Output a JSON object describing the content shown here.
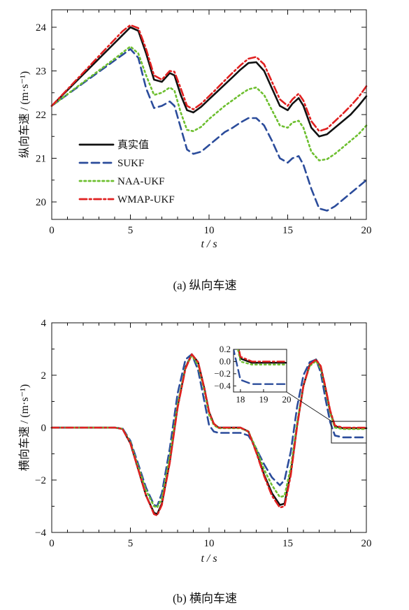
{
  "chart_data": [
    {
      "type": "line",
      "caption": "(a)  纵向车速",
      "xlabel": "t / s",
      "ylabel": "纵向车速 / (m·s⁻¹)",
      "xlim": [
        0,
        20
      ],
      "ylim": [
        19.6,
        24.4
      ],
      "xticks": [
        0,
        5,
        10,
        15,
        20
      ],
      "yticks": [
        20,
        21,
        22,
        23,
        24
      ],
      "legend_position": "lower-left",
      "series": [
        {
          "name": "真实值",
          "color": "#111111",
          "style": "solid",
          "x": [
            0,
            1,
            2,
            3,
            4,
            4.5,
            5,
            5.5,
            6,
            6.5,
            7,
            7.5,
            7.8,
            8.2,
            8.6,
            9,
            9.5,
            10,
            10.5,
            11,
            11.5,
            12,
            12.5,
            13,
            13.5,
            14,
            14.5,
            15,
            15.3,
            15.7,
            16,
            16.5,
            17,
            17.5,
            18,
            18.5,
            19,
            19.5,
            20
          ],
          "y": [
            22.2,
            22.56,
            22.92,
            23.28,
            23.64,
            23.82,
            24.0,
            23.92,
            23.4,
            22.8,
            22.75,
            22.95,
            22.9,
            22.45,
            22.1,
            22.05,
            22.18,
            22.35,
            22.52,
            22.69,
            22.86,
            23.03,
            23.18,
            23.2,
            23.0,
            22.6,
            22.2,
            22.1,
            22.25,
            22.38,
            22.2,
            21.7,
            21.5,
            21.55,
            21.7,
            21.85,
            22.0,
            22.2,
            22.42
          ]
        },
        {
          "name": "SUKF",
          "color": "#2b4c9b",
          "style": "dashed",
          "x": [
            0,
            1,
            2,
            3,
            4,
            4.5,
            5,
            5.5,
            6,
            6.5,
            7,
            7.5,
            7.8,
            8.2,
            8.6,
            9,
            9.5,
            10,
            10.5,
            11,
            11.5,
            12,
            12.5,
            13,
            13.5,
            14,
            14.5,
            15,
            15.3,
            15.7,
            16,
            16.5,
            17,
            17.5,
            18,
            18.5,
            19,
            19.5,
            20
          ],
          "y": [
            22.2,
            22.46,
            22.72,
            22.98,
            23.24,
            23.37,
            23.5,
            23.3,
            22.6,
            22.15,
            22.2,
            22.3,
            22.2,
            21.7,
            21.2,
            21.1,
            21.15,
            21.3,
            21.45,
            21.6,
            21.7,
            21.82,
            21.92,
            21.92,
            21.75,
            21.4,
            21.0,
            20.9,
            21.0,
            21.05,
            20.85,
            20.3,
            19.85,
            19.8,
            19.9,
            20.05,
            20.2,
            20.35,
            20.5
          ]
        },
        {
          "name": "NAA-UKF",
          "color": "#6dbf2f",
          "style": "dotted",
          "x": [
            0,
            1,
            2,
            3,
            4,
            4.5,
            5,
            5.5,
            6,
            6.5,
            7,
            7.5,
            7.8,
            8.2,
            8.6,
            9,
            9.5,
            10,
            10.5,
            11,
            11.5,
            12,
            12.5,
            13,
            13.5,
            14,
            14.5,
            15,
            15.3,
            15.7,
            16,
            16.5,
            17,
            17.5,
            18,
            18.5,
            19,
            19.5,
            20
          ],
          "y": [
            22.2,
            22.47,
            22.74,
            23.01,
            23.28,
            23.42,
            23.56,
            23.4,
            22.9,
            22.45,
            22.5,
            22.62,
            22.55,
            22.05,
            21.65,
            21.62,
            21.72,
            21.9,
            22.05,
            22.2,
            22.33,
            22.46,
            22.58,
            22.62,
            22.45,
            22.1,
            21.75,
            21.7,
            21.82,
            21.86,
            21.7,
            21.15,
            20.95,
            20.98,
            21.1,
            21.25,
            21.4,
            21.55,
            21.75
          ]
        },
        {
          "name": "WMAP-UKF",
          "color": "#e02020",
          "style": "dashdot",
          "x": [
            0,
            1,
            2,
            3,
            4,
            4.5,
            5,
            5.5,
            6,
            6.5,
            7,
            7.5,
            7.8,
            8.2,
            8.6,
            9,
            9.5,
            10,
            10.5,
            11,
            11.5,
            12,
            12.5,
            13,
            13.5,
            14,
            14.5,
            15,
            15.3,
            15.7,
            16,
            16.5,
            17,
            17.5,
            18,
            18.5,
            19,
            19.5,
            20
          ],
          "y": [
            22.2,
            22.58,
            22.96,
            23.34,
            23.72,
            23.91,
            24.05,
            23.98,
            23.5,
            22.9,
            22.8,
            23.0,
            22.98,
            22.6,
            22.2,
            22.12,
            22.25,
            22.42,
            22.6,
            22.78,
            22.96,
            23.13,
            23.28,
            23.32,
            23.15,
            22.75,
            22.35,
            22.2,
            22.35,
            22.48,
            22.32,
            21.85,
            21.62,
            21.68,
            21.85,
            22.02,
            22.2,
            22.4,
            22.65
          ]
        }
      ]
    },
    {
      "type": "line",
      "caption": "(b)  横向车速",
      "xlabel": "t / s",
      "ylabel": "横向车速 / (m·s⁻¹)",
      "xlim": [
        0,
        20
      ],
      "ylim": [
        -4,
        4
      ],
      "xticks": [
        0,
        5,
        10,
        15,
        20
      ],
      "yticks": [
        -4,
        -2,
        0,
        2,
        4
      ],
      "series": [
        {
          "name": "真实值",
          "color": "#111111",
          "style": "solid",
          "x": [
            0,
            2,
            4,
            4.5,
            5,
            5.5,
            6,
            6.5,
            6.7,
            7,
            7.5,
            8,
            8.5,
            8.9,
            9.3,
            9.7,
            10,
            10.3,
            10.6,
            11,
            11.5,
            12,
            12.5,
            13,
            13.5,
            14,
            14.5,
            14.8,
            15.2,
            15.6,
            16,
            16.4,
            16.8,
            17.1,
            17.4,
            17.7,
            18,
            18.5,
            19,
            19.5,
            20
          ],
          "y": [
            0,
            0,
            0,
            -0.05,
            -0.6,
            -1.6,
            -2.6,
            -3.25,
            -3.3,
            -2.9,
            -1.3,
            0.8,
            2.3,
            2.8,
            2.5,
            1.5,
            0.6,
            0.15,
            0,
            0,
            0,
            0,
            -0.15,
            -0.9,
            -1.8,
            -2.5,
            -2.95,
            -2.9,
            -1.7,
            0.1,
            1.6,
            2.4,
            2.6,
            2.3,
            1.5,
            0.6,
            0.05,
            -0.02,
            -0.02,
            -0.02,
            -0.02
          ]
        },
        {
          "name": "SUKF",
          "color": "#2b4c9b",
          "style": "dashed",
          "x": [
            0,
            2,
            4,
            4.5,
            5,
            5.5,
            6,
            6.5,
            6.7,
            7,
            7.5,
            8,
            8.5,
            8.9,
            9.3,
            9.7,
            10,
            10.3,
            10.6,
            11,
            11.5,
            12,
            12.5,
            13,
            13.5,
            14,
            14.5,
            14.8,
            15.2,
            15.6,
            16,
            16.4,
            16.8,
            17.1,
            17.4,
            17.7,
            18,
            18.5,
            19,
            19.5,
            20
          ],
          "y": [
            0,
            0,
            0,
            -0.03,
            -0.5,
            -1.4,
            -2.3,
            -2.95,
            -3.0,
            -2.5,
            -0.8,
            1.3,
            2.6,
            2.8,
            2.2,
            1.0,
            0.1,
            -0.15,
            -0.2,
            -0.2,
            -0.2,
            -0.2,
            -0.3,
            -0.8,
            -1.4,
            -1.9,
            -2.2,
            -2.0,
            -0.9,
            0.8,
            2.0,
            2.5,
            2.6,
            2.1,
            1.1,
            0.2,
            -0.3,
            -0.37,
            -0.37,
            -0.37,
            -0.37
          ]
        },
        {
          "name": "NAA-UKF",
          "color": "#6dbf2f",
          "style": "dotted",
          "x": [
            0,
            2,
            4,
            4.5,
            5,
            5.5,
            6,
            6.5,
            6.7,
            7,
            7.5,
            8,
            8.5,
            8.9,
            9.3,
            9.7,
            10,
            10.3,
            10.6,
            11,
            11.5,
            12,
            12.5,
            13,
            13.5,
            14,
            14.5,
            14.8,
            15.2,
            15.6,
            16,
            16.4,
            16.8,
            17.1,
            17.4,
            17.7,
            18,
            18.5,
            19,
            19.5,
            20
          ],
          "y": [
            0,
            0,
            0,
            -0.04,
            -0.55,
            -1.5,
            -2.4,
            -3.0,
            -3.05,
            -2.7,
            -1.1,
            0.9,
            2.3,
            2.75,
            2.4,
            1.4,
            0.5,
            0.1,
            -0.02,
            -0.02,
            -0.02,
            -0.02,
            -0.15,
            -0.8,
            -1.6,
            -2.2,
            -2.65,
            -2.6,
            -1.5,
            0.2,
            1.6,
            2.35,
            2.55,
            2.25,
            1.45,
            0.55,
            0.0,
            -0.05,
            -0.05,
            -0.05,
            -0.05
          ]
        },
        {
          "name": "WMAP-UKF",
          "color": "#e02020",
          "style": "dashdot",
          "x": [
            0,
            2,
            4,
            4.5,
            5,
            5.5,
            6,
            6.5,
            6.7,
            7,
            7.5,
            8,
            8.5,
            8.9,
            9.3,
            9.7,
            10,
            10.3,
            10.6,
            11,
            11.5,
            12,
            12.5,
            13,
            13.5,
            14,
            14.5,
            14.8,
            15.2,
            15.6,
            16,
            16.4,
            16.8,
            17.1,
            17.4,
            17.7,
            18,
            18.5,
            19,
            19.5,
            20
          ],
          "y": [
            0,
            0,
            0,
            -0.05,
            -0.6,
            -1.6,
            -2.6,
            -3.3,
            -3.35,
            -2.95,
            -1.35,
            0.75,
            2.25,
            2.8,
            2.5,
            1.5,
            0.6,
            0.15,
            0,
            0,
            0,
            0,
            -0.15,
            -0.95,
            -1.85,
            -2.6,
            -3.05,
            -3.0,
            -1.8,
            0.05,
            1.6,
            2.4,
            2.6,
            2.35,
            1.55,
            0.65,
            0.08,
            0,
            0,
            0,
            0
          ]
        }
      ],
      "inset": {
        "xlim": [
          17.7,
          20
        ],
        "ylim": [
          -0.5,
          0.2
        ],
        "xticks": [
          18,
          19,
          20
        ],
        "yticks": [
          0.2,
          0.0,
          -0.2,
          -0.4
        ],
        "ytick_labels": [
          "0.2",
          "0.0",
          "−0.2",
          "−0.4"
        ]
      }
    }
  ]
}
